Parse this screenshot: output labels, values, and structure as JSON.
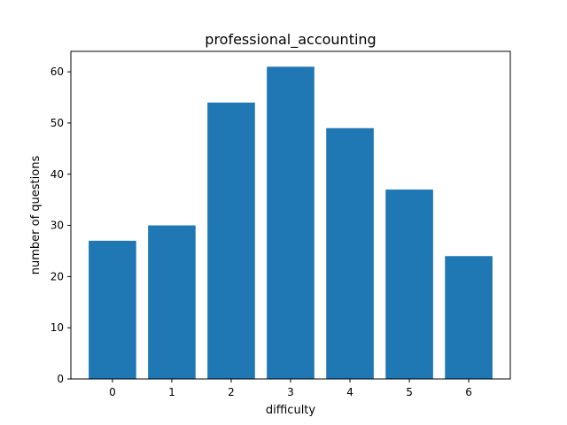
{
  "chart_data": {
    "type": "bar",
    "title": "professional_accounting",
    "xlabel": "difficulty",
    "ylabel": "number of questions",
    "categories": [
      "0",
      "1",
      "2",
      "3",
      "4",
      "5",
      "6"
    ],
    "values": [
      27,
      30,
      54,
      61,
      49,
      37,
      24
    ],
    "ylim": [
      0,
      64
    ],
    "yticks": [
      0,
      10,
      20,
      30,
      40,
      50,
      60
    ],
    "bar_color": "#1f77b4",
    "grid": false,
    "legend": "none"
  }
}
